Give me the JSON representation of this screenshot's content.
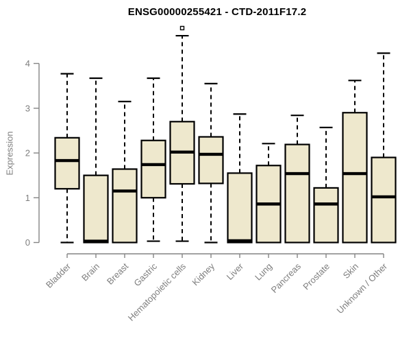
{
  "chart_data": {
    "type": "boxplot",
    "title": "ENSG00000255421 - CTD-2011F17.2",
    "xlabel": "",
    "ylabel": "Expression",
    "ylim": [
      0,
      4
    ],
    "yticks": [
      0,
      1,
      2,
      3,
      4
    ],
    "grid": false,
    "legend": "none",
    "categories": [
      "Bladder",
      "Brain",
      "Breast",
      "Gastric",
      "Hematopoietic cells",
      "Kidney",
      "Liver",
      "Lung",
      "Pancreas",
      "Prostate",
      "Skin",
      "Unknown / Other"
    ],
    "boxes": [
      {
        "label": "Bladder",
        "whisker_low": 0.0,
        "q1": 1.2,
        "median": 1.83,
        "q3": 2.34,
        "whisker_high": 3.77,
        "outliers": []
      },
      {
        "label": "Brain",
        "whisker_low": 0.0,
        "q1": 0.0,
        "median": 0.03,
        "q3": 1.5,
        "whisker_high": 3.67,
        "outliers": []
      },
      {
        "label": "Breast",
        "whisker_low": 0.0,
        "q1": 0.0,
        "median": 1.15,
        "q3": 1.64,
        "whisker_high": 3.15,
        "outliers": []
      },
      {
        "label": "Gastric",
        "whisker_low": 0.03,
        "q1": 1.0,
        "median": 1.74,
        "q3": 2.28,
        "whisker_high": 3.67,
        "outliers": []
      },
      {
        "label": "Hematopoietic cells",
        "whisker_low": 0.03,
        "q1": 1.31,
        "median": 2.02,
        "q3": 2.7,
        "whisker_high": 4.62,
        "outliers": [
          4.79
        ]
      },
      {
        "label": "Kidney",
        "whisker_low": 0.0,
        "q1": 1.32,
        "median": 1.97,
        "q3": 2.36,
        "whisker_high": 3.55,
        "outliers": []
      },
      {
        "label": "Liver",
        "whisker_low": 0.0,
        "q1": 0.0,
        "median": 0.04,
        "q3": 1.55,
        "whisker_high": 2.87,
        "outliers": []
      },
      {
        "label": "Lung",
        "whisker_low": 0.0,
        "q1": 0.0,
        "median": 0.86,
        "q3": 1.72,
        "whisker_high": 2.21,
        "outliers": []
      },
      {
        "label": "Pancreas",
        "whisker_low": 0.0,
        "q1": 0.0,
        "median": 1.54,
        "q3": 2.19,
        "whisker_high": 2.84,
        "outliers": []
      },
      {
        "label": "Prostate",
        "whisker_low": 0.0,
        "q1": 0.0,
        "median": 0.86,
        "q3": 1.22,
        "whisker_high": 2.57,
        "outliers": []
      },
      {
        "label": "Skin",
        "whisker_low": 0.0,
        "q1": 0.0,
        "median": 1.54,
        "q3": 2.9,
        "whisker_high": 3.62,
        "outliers": []
      },
      {
        "label": "Unknown / Other",
        "whisker_low": 0.0,
        "q1": 0.0,
        "median": 1.02,
        "q3": 1.9,
        "whisker_high": 4.23,
        "outliers": []
      }
    ],
    "colors": {
      "background": "#FFFFFF",
      "box_fill": "#EEE8CD",
      "box_stroke": "#000000",
      "median": "#000000",
      "whisker": "#000000",
      "axis": "#848484",
      "tick_text": "#7E7E7E",
      "title_text": "#000000"
    }
  }
}
